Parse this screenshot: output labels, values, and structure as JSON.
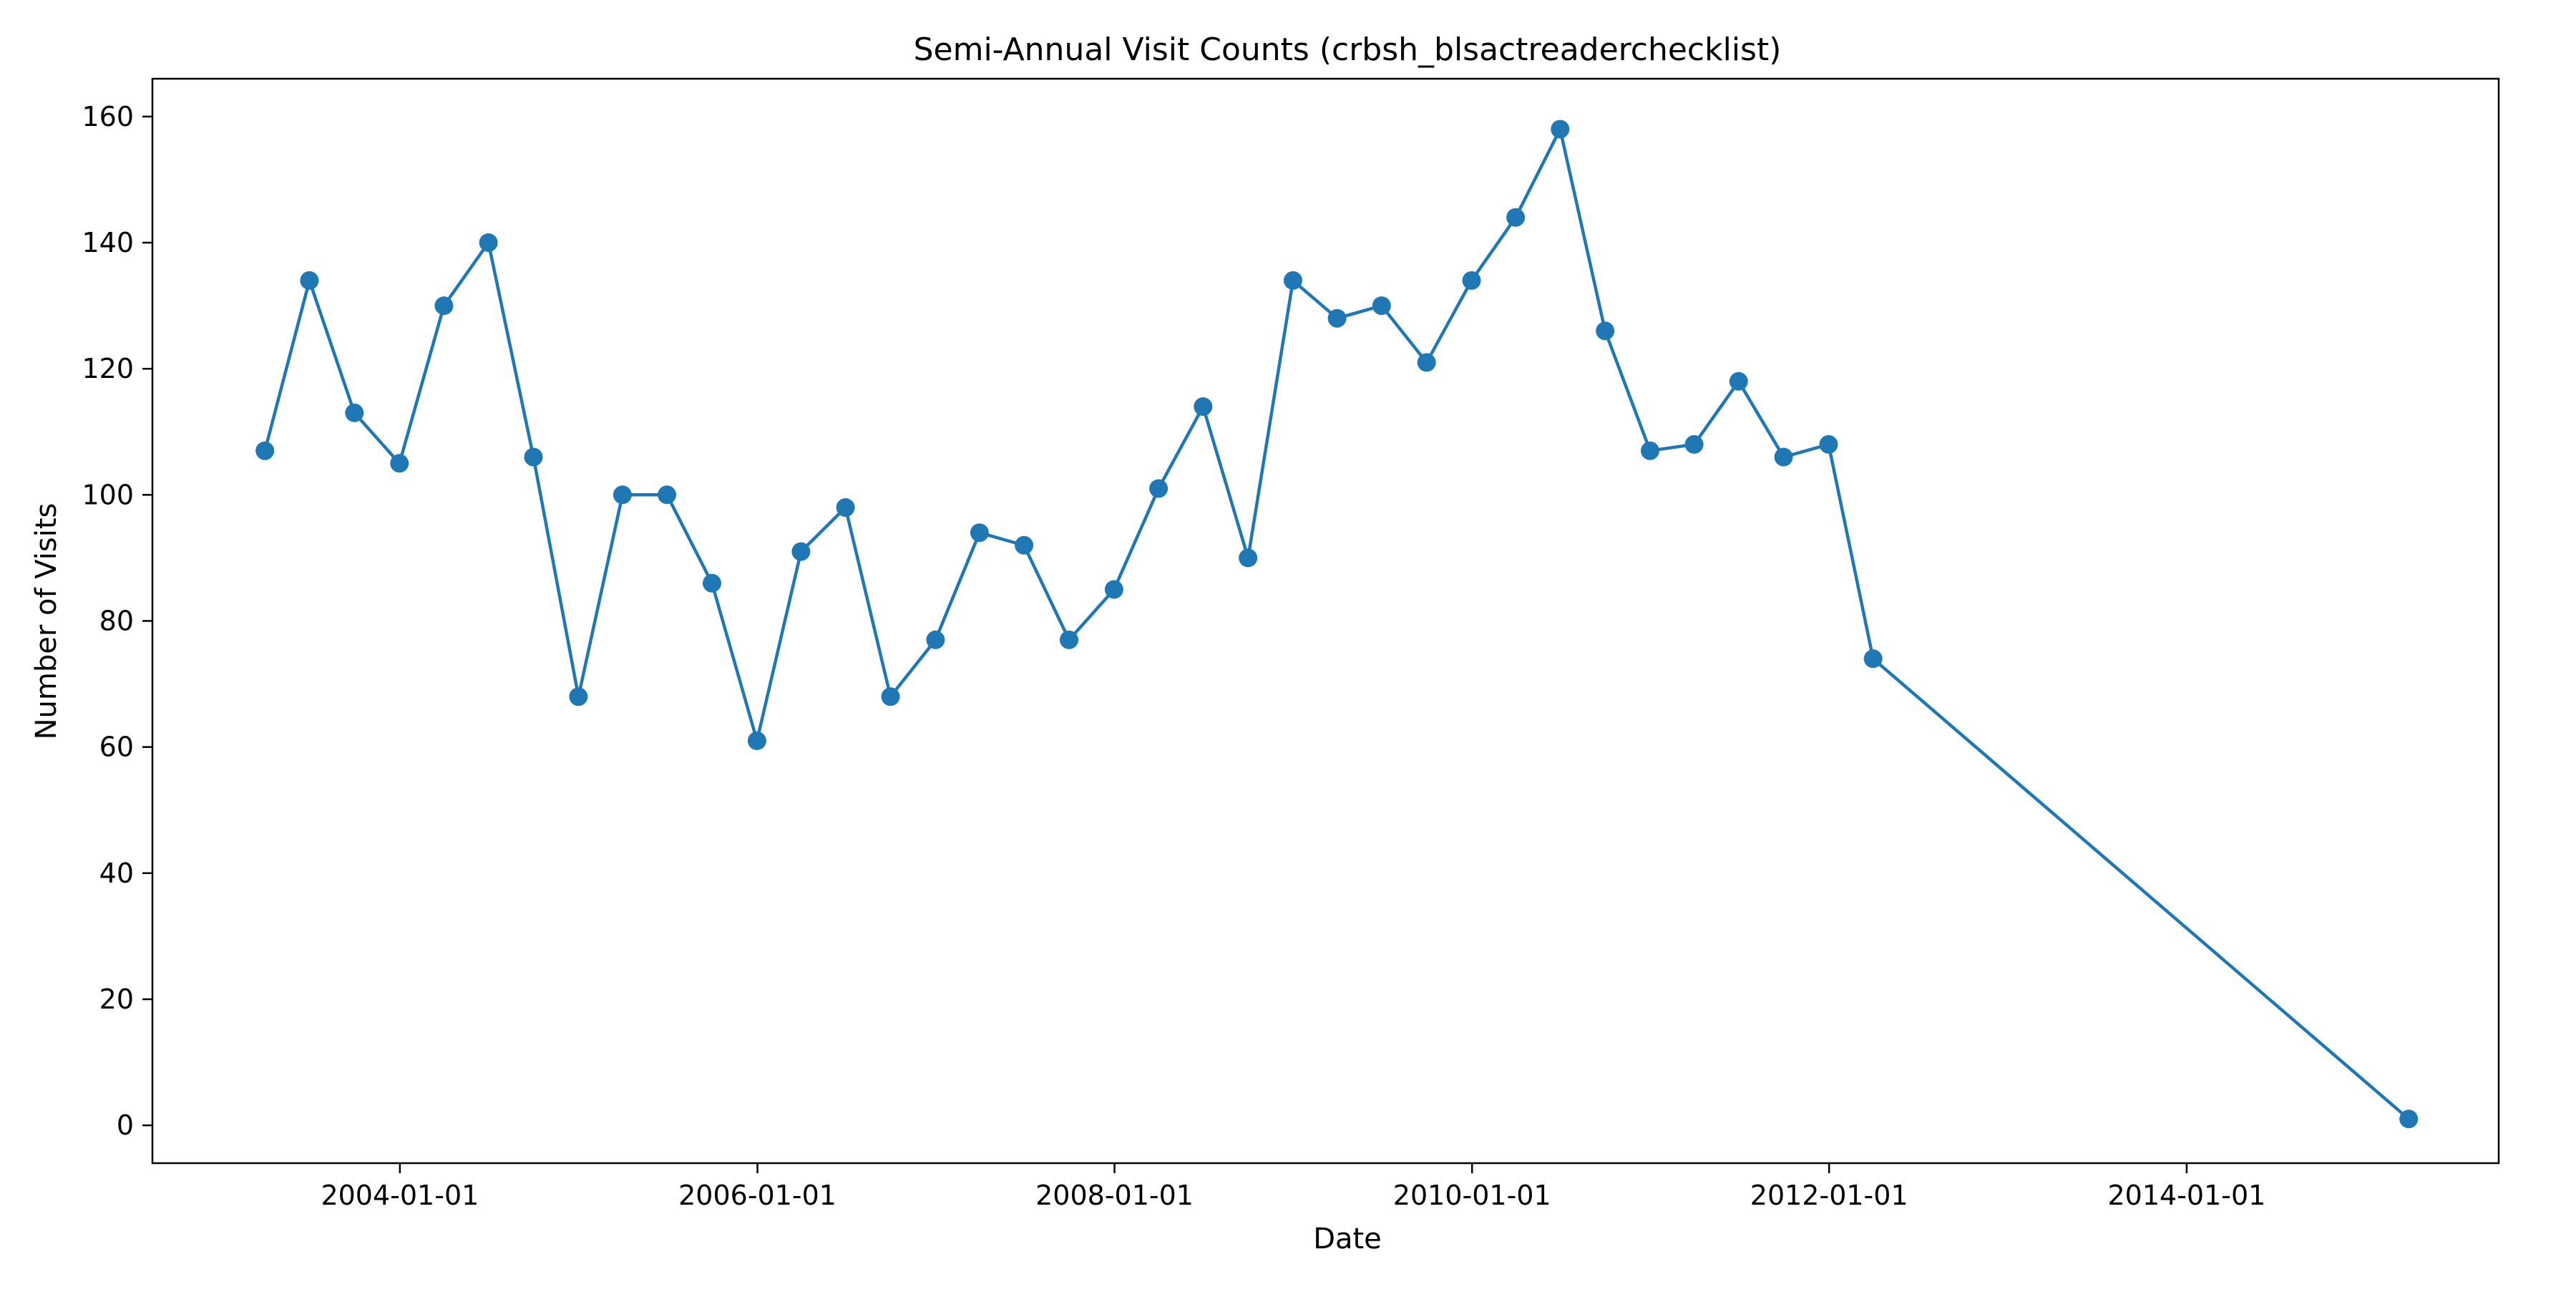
{
  "chart_data": {
    "type": "line",
    "title": "Semi-Annual Visit Counts (crbsh_blsactreaderchecklist)",
    "xlabel": "Date",
    "ylabel": "Number of Visits",
    "x_axis_kind": "date",
    "xlim": [
      "2002-08-13",
      "2015-10-01"
    ],
    "ylim": [
      -6,
      166
    ],
    "xticks": [
      "2004-01-01",
      "2006-01-01",
      "2008-01-01",
      "2010-01-01",
      "2012-01-01",
      "2014-01-01"
    ],
    "yticks": [
      0,
      20,
      40,
      60,
      80,
      100,
      120,
      140,
      160
    ],
    "grid": false,
    "legend": "none",
    "colors": {
      "line": "#1f77b4",
      "marker": "#1f77b4",
      "axes": "#000000"
    },
    "series": [
      {
        "x": [
          "2003-03-31",
          "2003-06-30",
          "2003-09-30",
          "2003-12-31",
          "2004-03-31",
          "2004-06-30",
          "2004-09-30",
          "2004-12-31",
          "2005-03-31",
          "2005-06-30",
          "2005-09-30",
          "2005-12-31",
          "2006-03-31",
          "2006-06-30",
          "2006-09-30",
          "2006-12-31",
          "2007-03-31",
          "2007-06-30",
          "2007-09-30",
          "2007-12-31",
          "2008-03-31",
          "2008-06-30",
          "2008-09-30",
          "2008-12-31",
          "2009-03-31",
          "2009-06-30",
          "2009-09-30",
          "2009-12-31",
          "2010-03-31",
          "2010-06-30",
          "2010-09-30",
          "2010-12-31",
          "2011-03-31",
          "2011-06-30",
          "2011-09-30",
          "2011-12-31",
          "2012-03-31",
          "2015-03-31"
        ],
        "values": [
          107,
          134,
          113,
          105,
          130,
          140,
          106,
          68,
          100,
          100,
          86,
          61,
          91,
          98,
          68,
          77,
          94,
          92,
          77,
          85,
          101,
          114,
          90,
          134,
          128,
          130,
          121,
          134,
          144,
          158,
          126,
          107,
          108,
          118,
          106,
          108,
          74,
          1
        ]
      }
    ]
  }
}
